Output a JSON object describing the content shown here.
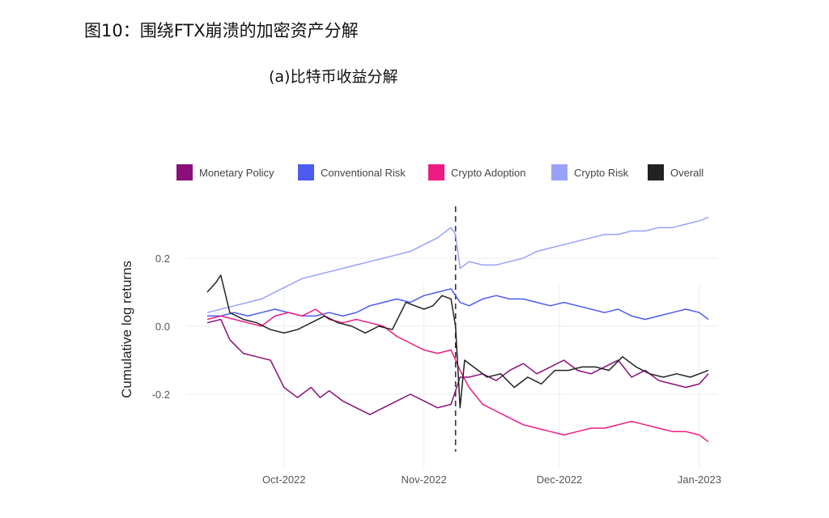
{
  "header": {
    "title": "图10：围绕FTX崩溃的加密资产分解",
    "subtitle": "(a)比特币收益分解"
  },
  "chart_data": {
    "type": "line",
    "title": "(a)比特币收益分解",
    "xlabel": "",
    "ylabel": "Cumulative log returns",
    "x_unit": "day index (0 = 2022-09-14)",
    "xlim": [
      0,
      111
    ],
    "ylim": [
      -0.37,
      0.37
    ],
    "yticks": [
      0.2,
      0.0,
      -0.2
    ],
    "ytick_labels": [
      "0.2",
      "0.0",
      "-0.2"
    ],
    "xticks": [
      17,
      48,
      78,
      109
    ],
    "xtick_labels": [
      "Oct-2022",
      "Nov-2022",
      "Dec-2022",
      "Jan-2023"
    ],
    "event_line_x": 55,
    "grid": true,
    "legend_position": "top",
    "series": [
      {
        "name": "Monetary Policy",
        "color": "#8b0f7a",
        "x": [
          0,
          3,
          5,
          8,
          11,
          14,
          17,
          20,
          23,
          25,
          27,
          30,
          33,
          36,
          39,
          42,
          45,
          48,
          51,
          54,
          56,
          58,
          61,
          64,
          67,
          70,
          73,
          76,
          79,
          82,
          85,
          88,
          91,
          94,
          97,
          100,
          103,
          106,
          109,
          111
        ],
        "y": [
          0.01,
          0.02,
          -0.04,
          -0.08,
          -0.09,
          -0.1,
          -0.18,
          -0.21,
          -0.18,
          -0.21,
          -0.19,
          -0.22,
          -0.24,
          -0.26,
          -0.24,
          -0.22,
          -0.2,
          -0.22,
          -0.24,
          -0.23,
          -0.15,
          -0.15,
          -0.14,
          -0.16,
          -0.13,
          -0.11,
          -0.14,
          -0.12,
          -0.1,
          -0.13,
          -0.14,
          -0.12,
          -0.1,
          -0.15,
          -0.13,
          -0.16,
          -0.17,
          -0.18,
          -0.17,
          -0.14
        ]
      },
      {
        "name": "Conventional Risk",
        "color": "#4d5af0",
        "x": [
          0,
          3,
          6,
          9,
          12,
          15,
          18,
          21,
          24,
          27,
          30,
          33,
          36,
          39,
          42,
          45,
          48,
          51,
          54,
          56,
          58,
          61,
          64,
          67,
          70,
          73,
          76,
          79,
          82,
          85,
          88,
          91,
          94,
          97,
          100,
          103,
          106,
          109,
          111
        ],
        "y": [
          0.03,
          0.03,
          0.04,
          0.03,
          0.04,
          0.05,
          0.04,
          0.03,
          0.03,
          0.04,
          0.03,
          0.04,
          0.06,
          0.07,
          0.08,
          0.07,
          0.09,
          0.1,
          0.11,
          0.07,
          0.06,
          0.08,
          0.09,
          0.08,
          0.08,
          0.07,
          0.06,
          0.07,
          0.06,
          0.05,
          0.04,
          0.05,
          0.03,
          0.02,
          0.03,
          0.04,
          0.05,
          0.04,
          0.02
        ]
      },
      {
        "name": "Crypto Adoption",
        "color": "#f01b82",
        "x": [
          0,
          3,
          6,
          9,
          12,
          15,
          18,
          21,
          24,
          27,
          30,
          33,
          36,
          39,
          42,
          45,
          48,
          51,
          54,
          56,
          58,
          61,
          64,
          67,
          70,
          73,
          76,
          79,
          82,
          85,
          88,
          91,
          94,
          97,
          100,
          103,
          106,
          109,
          111
        ],
        "y": [
          0.02,
          0.03,
          0.02,
          0.01,
          0.0,
          0.03,
          0.04,
          0.03,
          0.05,
          0.02,
          0.01,
          0.02,
          0.01,
          0.0,
          -0.03,
          -0.05,
          -0.07,
          -0.08,
          -0.07,
          -0.13,
          -0.18,
          -0.23,
          -0.25,
          -0.27,
          -0.29,
          -0.3,
          -0.31,
          -0.32,
          -0.31,
          -0.3,
          -0.3,
          -0.29,
          -0.28,
          -0.29,
          -0.3,
          -0.31,
          -0.31,
          -0.32,
          -0.34
        ]
      },
      {
        "name": "Crypto Risk",
        "color": "#99a1f7",
        "x": [
          0,
          3,
          6,
          9,
          12,
          15,
          18,
          21,
          24,
          27,
          30,
          33,
          36,
          39,
          42,
          45,
          48,
          51,
          54,
          55,
          56,
          58,
          61,
          64,
          67,
          70,
          73,
          76,
          79,
          82,
          85,
          88,
          91,
          94,
          97,
          100,
          103,
          106,
          109,
          111
        ],
        "y": [
          0.04,
          0.05,
          0.06,
          0.07,
          0.08,
          0.1,
          0.12,
          0.14,
          0.15,
          0.16,
          0.17,
          0.18,
          0.19,
          0.2,
          0.21,
          0.22,
          0.24,
          0.26,
          0.29,
          0.27,
          0.17,
          0.19,
          0.18,
          0.18,
          0.19,
          0.2,
          0.22,
          0.23,
          0.24,
          0.25,
          0.26,
          0.27,
          0.27,
          0.28,
          0.28,
          0.29,
          0.29,
          0.3,
          0.31,
          0.32
        ]
      },
      {
        "name": "Overall",
        "color": "#222222",
        "x": [
          0,
          2,
          3,
          5,
          8,
          11,
          14,
          17,
          20,
          23,
          26,
          29,
          32,
          35,
          38,
          41,
          44,
          46,
          48,
          50,
          52,
          54,
          55,
          56,
          57,
          59,
          62,
          65,
          68,
          71,
          74,
          77,
          80,
          83,
          86,
          89,
          92,
          95,
          98,
          101,
          104,
          107,
          109,
          111
        ],
        "y": [
          0.1,
          0.13,
          0.15,
          0.04,
          0.02,
          0.01,
          -0.01,
          -0.02,
          -0.01,
          0.01,
          0.03,
          0.01,
          0.0,
          -0.02,
          0.0,
          -0.01,
          0.07,
          0.06,
          0.05,
          0.06,
          0.09,
          0.08,
          0.0,
          -0.24,
          -0.1,
          -0.12,
          -0.15,
          -0.14,
          -0.18,
          -0.15,
          -0.17,
          -0.13,
          -0.13,
          -0.12,
          -0.12,
          -0.13,
          -0.09,
          -0.12,
          -0.14,
          -0.15,
          -0.14,
          -0.15,
          -0.14,
          -0.13
        ]
      }
    ]
  }
}
